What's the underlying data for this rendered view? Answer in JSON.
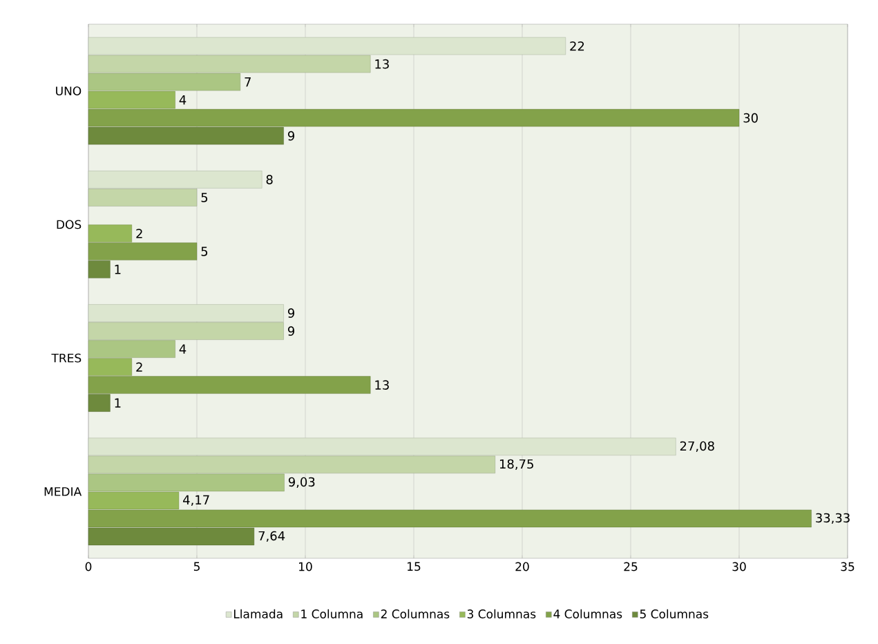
{
  "chart_data": {
    "type": "bar",
    "orientation": "horizontal",
    "categories": [
      "UNO",
      "DOS",
      "TRES",
      "MEDIA"
    ],
    "series": [
      {
        "name": "Llamada",
        "color": "#dce6cf",
        "values": [
          22,
          8,
          9,
          27.08
        ],
        "value_labels": [
          "22",
          "8",
          "9",
          "27,08"
        ]
      },
      {
        "name": "1 Columna",
        "color": "#c4d6a8",
        "values": [
          13,
          5,
          9,
          18.75
        ],
        "value_labels": [
          "13",
          "5",
          "9",
          "18,75"
        ]
      },
      {
        "name": "2 Columnas",
        "color": "#abc683",
        "values": [
          7,
          null,
          4,
          9.03
        ],
        "value_labels": [
          "7",
          null,
          "4",
          "9,03"
        ]
      },
      {
        "name": "3 Columnas",
        "color": "#97b95a",
        "values": [
          4,
          2,
          2,
          4.17
        ],
        "value_labels": [
          "4",
          "2",
          "2",
          "4,17"
        ]
      },
      {
        "name": "4 Columnas",
        "color": "#83a24a",
        "values": [
          30,
          5,
          13,
          33.33
        ],
        "value_labels": [
          "30",
          "5",
          "13",
          "33,33"
        ]
      },
      {
        "name": "5 Columnas",
        "color": "#6e8a3d",
        "values": [
          9,
          1,
          1,
          7.64
        ],
        "value_labels": [
          "9",
          "1",
          "1",
          "7,64"
        ]
      }
    ],
    "xlim": [
      0,
      35
    ],
    "xticks": [
      0,
      5,
      10,
      15,
      20,
      25,
      30,
      35
    ],
    "grid": "x",
    "legend": "bottom"
  }
}
